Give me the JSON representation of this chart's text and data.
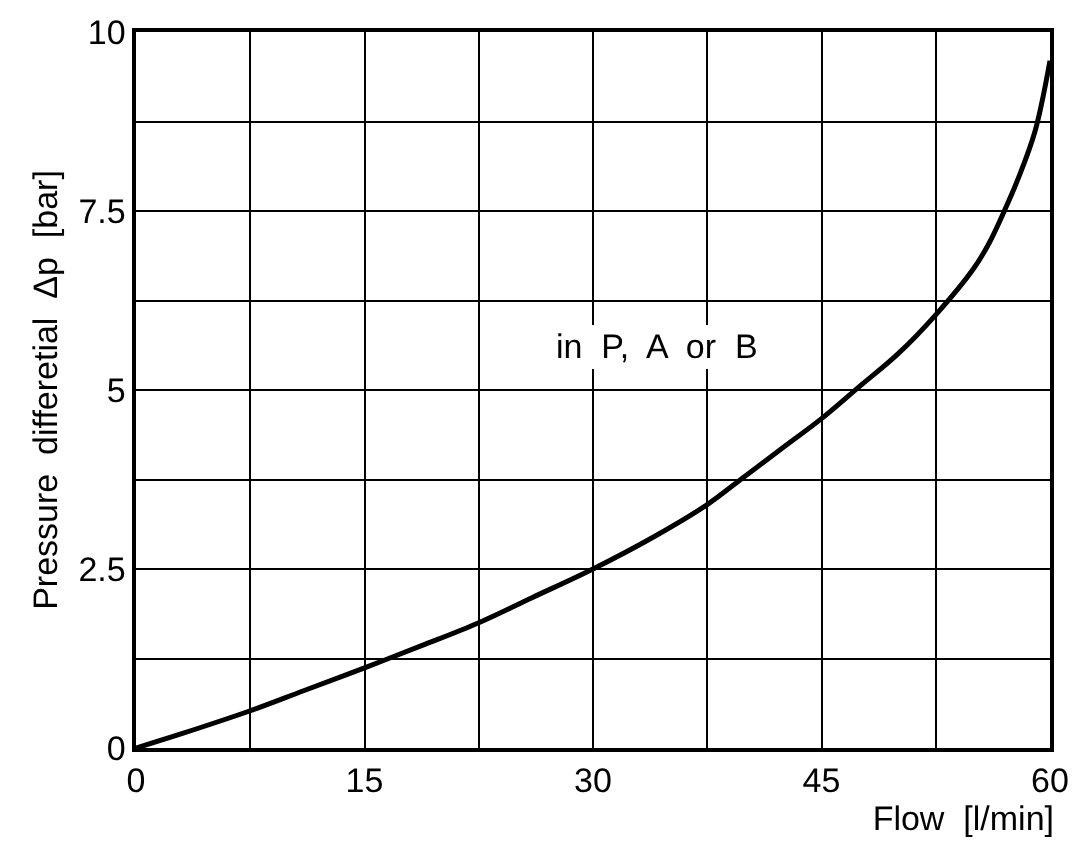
{
  "chart_data": {
    "type": "line",
    "xlabel": "Flow  [l/min]",
    "ylabel": "Pressure  differetial  Δp  [bar]",
    "x": [
      0,
      3,
      7.5,
      11,
      15,
      19,
      22.5,
      26,
      30,
      34,
      37.5,
      40,
      42.5,
      45,
      47.5,
      50,
      52.5,
      55,
      56,
      57,
      58,
      59,
      59.5,
      60
    ],
    "series": [
      {
        "color": "#000000",
        "values": [
          0,
          0.2,
          0.52,
          0.8,
          1.12,
          1.45,
          1.75,
          2.1,
          2.5,
          2.95,
          3.4,
          3.8,
          4.2,
          4.6,
          5.05,
          5.5,
          6.05,
          6.7,
          7.05,
          7.5,
          8.0,
          8.6,
          9.05,
          9.6
        ]
      }
    ],
    "xlim": [
      0,
      60
    ],
    "xticks": [
      0,
      {
        "value": 7.5,
        "label": null
      },
      15,
      {
        "value": 22.5,
        "label": null
      },
      30,
      {
        "value": 37.5,
        "label": null
      },
      45,
      {
        "value": 52.5,
        "label": null
      },
      60
    ],
    "ylim": [
      0,
      10
    ],
    "yticks": [
      0,
      {
        "value": 1.25,
        "label": null
      },
      2.5,
      {
        "value": 3.75,
        "label": null
      },
      5,
      {
        "value": 6.25,
        "label": null
      },
      7.5,
      {
        "value": 8.75,
        "label": null
      },
      10
    ],
    "grid": true,
    "marker": "none",
    "line_style": "solid",
    "annotations": [
      "in  P,  A  or  B"
    ]
  }
}
